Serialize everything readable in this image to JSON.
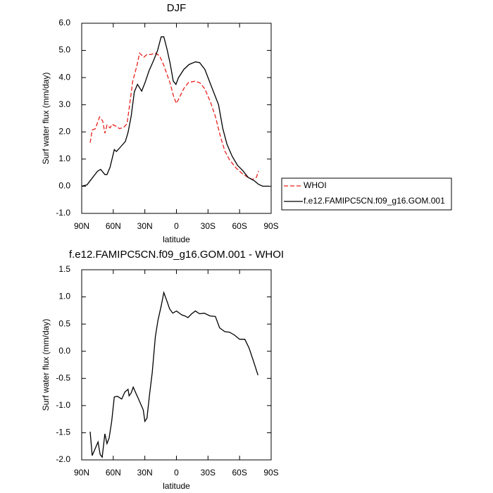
{
  "chart_data": [
    {
      "type": "line",
      "title": "DJF",
      "x_label": "latitude",
      "y_label": "Surf water flux (mm/day)",
      "xlim": [
        90,
        -90
      ],
      "xticks": [
        {
          "value": 90,
          "label": "90N"
        },
        {
          "value": 60,
          "label": "60N"
        },
        {
          "value": 30,
          "label": "30N"
        },
        0,
        {
          "value": -30,
          "label": "30S"
        },
        {
          "value": -60,
          "label": "60S"
        },
        {
          "value": -90,
          "label": "90S"
        }
      ],
      "ylim": [
        -1,
        6
      ],
      "yticks": [
        {
          "value": -1,
          "label": "-1.0"
        },
        {
          "value": 0,
          "label": "0.0"
        },
        {
          "value": 1,
          "label": "1.0"
        },
        {
          "value": 2,
          "label": "2.0"
        },
        {
          "value": 3,
          "label": "3.0"
        },
        {
          "value": 4,
          "label": "4.0"
        },
        {
          "value": 5,
          "label": "5.0"
        },
        {
          "value": 6,
          "label": "6.0"
        }
      ],
      "legend": "right",
      "series": [
        {
          "name": "WHOI",
          "color": "#e8201c",
          "dash": "dashed",
          "x": [
            82,
            80,
            77,
            73,
            70,
            68,
            66,
            63,
            61,
            57,
            54,
            50,
            47,
            45,
            41.5,
            37.5,
            35,
            31,
            28,
            24,
            20,
            16,
            12,
            9,
            6,
            2.5,
            0,
            -3,
            -7,
            -11.5,
            -18,
            -22.5,
            -27,
            -32.5,
            -37,
            -42,
            -46,
            -50.5,
            -56.5,
            -62,
            -67,
            -72,
            -76,
            -78
          ],
          "values": [
            1.6,
            2.07,
            2.12,
            2.55,
            2.4,
            1.95,
            2.25,
            2.15,
            2.28,
            2.2,
            2.12,
            2.17,
            2.3,
            2.85,
            3.87,
            4.45,
            4.9,
            4.75,
            4.85,
            4.85,
            4.9,
            4.8,
            4.45,
            4.12,
            3.8,
            3.28,
            3.05,
            3.28,
            3.6,
            3.82,
            3.87,
            3.8,
            3.58,
            3.08,
            2.57,
            1.8,
            1.3,
            0.97,
            0.68,
            0.48,
            0.35,
            0.25,
            0.33,
            0.56
          ]
        },
        {
          "name": "f.e12.FAMIPC5CN.f09_g16.GOM.001",
          "color": "#000000",
          "dash": "solid",
          "x": [
            90,
            85,
            81,
            75,
            72,
            68,
            66,
            63,
            59,
            57,
            53,
            48.5,
            46,
            43,
            40,
            37,
            33,
            30,
            26,
            22,
            18,
            14.5,
            12,
            9,
            6,
            3,
            0.5,
            -2,
            -7,
            -12,
            -18,
            -22,
            -27,
            -34,
            -40,
            -44,
            -48,
            -53,
            -58,
            -63,
            -68,
            -74,
            -78,
            -82,
            -88
          ],
          "values": [
            0,
            0.05,
            0.25,
            0.55,
            0.62,
            0.43,
            0.43,
            0.7,
            1.35,
            1.28,
            1.45,
            1.65,
            1.98,
            2.57,
            3.47,
            3.75,
            3.5,
            3.8,
            4.25,
            4.6,
            4.99,
            5.5,
            5.5,
            5.05,
            4.53,
            3.87,
            3.75,
            4.0,
            4.3,
            4.48,
            4.58,
            4.55,
            4.3,
            3.6,
            3.0,
            2.13,
            1.55,
            1.1,
            0.77,
            0.58,
            0.33,
            0.2,
            0.07,
            0,
            0
          ]
        }
      ]
    },
    {
      "type": "line",
      "title": "f.e12.FAMIPC5CN.f09_g16.GOM.001 - WHOI",
      "x_label": "latitude",
      "y_label": "Surf water flux (mm/day)",
      "xlim": [
        90,
        -90
      ],
      "xticks": [
        {
          "value": 90,
          "label": "90N"
        },
        {
          "value": 60,
          "label": "60N"
        },
        {
          "value": 30,
          "label": "30N"
        },
        0,
        {
          "value": -30,
          "label": "30S"
        },
        {
          "value": -60,
          "label": "60S"
        },
        {
          "value": -90,
          "label": "90S"
        }
      ],
      "ylim": [
        -2,
        1.5
      ],
      "yticks": [
        {
          "value": -2,
          "label": "-2.0"
        },
        -1.5,
        {
          "value": -1,
          "label": "-1.0"
        },
        -0.5,
        {
          "value": 0,
          "label": "0.0"
        },
        0.5,
        {
          "value": 1,
          "label": "1.0"
        },
        1.5
      ],
      "color": "#000000",
      "x": [
        82,
        80,
        78,
        74.5,
        72.5,
        70.5,
        68,
        66,
        64,
        61.5,
        59,
        56,
        52,
        49,
        46,
        45,
        43,
        41,
        39,
        36,
        33.5,
        31.5,
        30,
        28,
        25.5,
        23,
        20,
        17.5,
        14.5,
        12,
        9,
        6.5,
        3.5,
        0,
        -5,
        -8,
        -11,
        -14.5,
        -18,
        -22,
        -26.5,
        -32,
        -37,
        -41,
        -46,
        -50.5,
        -55,
        -60,
        -65,
        -69,
        -73,
        -77.5
      ],
      "values": [
        -1.48,
        -1.92,
        -1.83,
        -1.67,
        -1.9,
        -1.95,
        -1.52,
        -1.7,
        -1.6,
        -1.29,
        -0.84,
        -0.83,
        -0.88,
        -0.75,
        -0.7,
        -0.82,
        -0.77,
        -0.66,
        -0.75,
        -0.88,
        -0.99,
        -1.08,
        -1.29,
        -1.23,
        -0.79,
        -0.4,
        0.27,
        0.57,
        0.83,
        1.08,
        0.92,
        0.78,
        0.7,
        0.74,
        0.67,
        0.65,
        0.62,
        0.69,
        0.74,
        0.69,
        0.7,
        0.65,
        0.64,
        0.43,
        0.36,
        0.35,
        0.3,
        0.22,
        0.22,
        0.06,
        -0.17,
        -0.44
      ]
    }
  ]
}
